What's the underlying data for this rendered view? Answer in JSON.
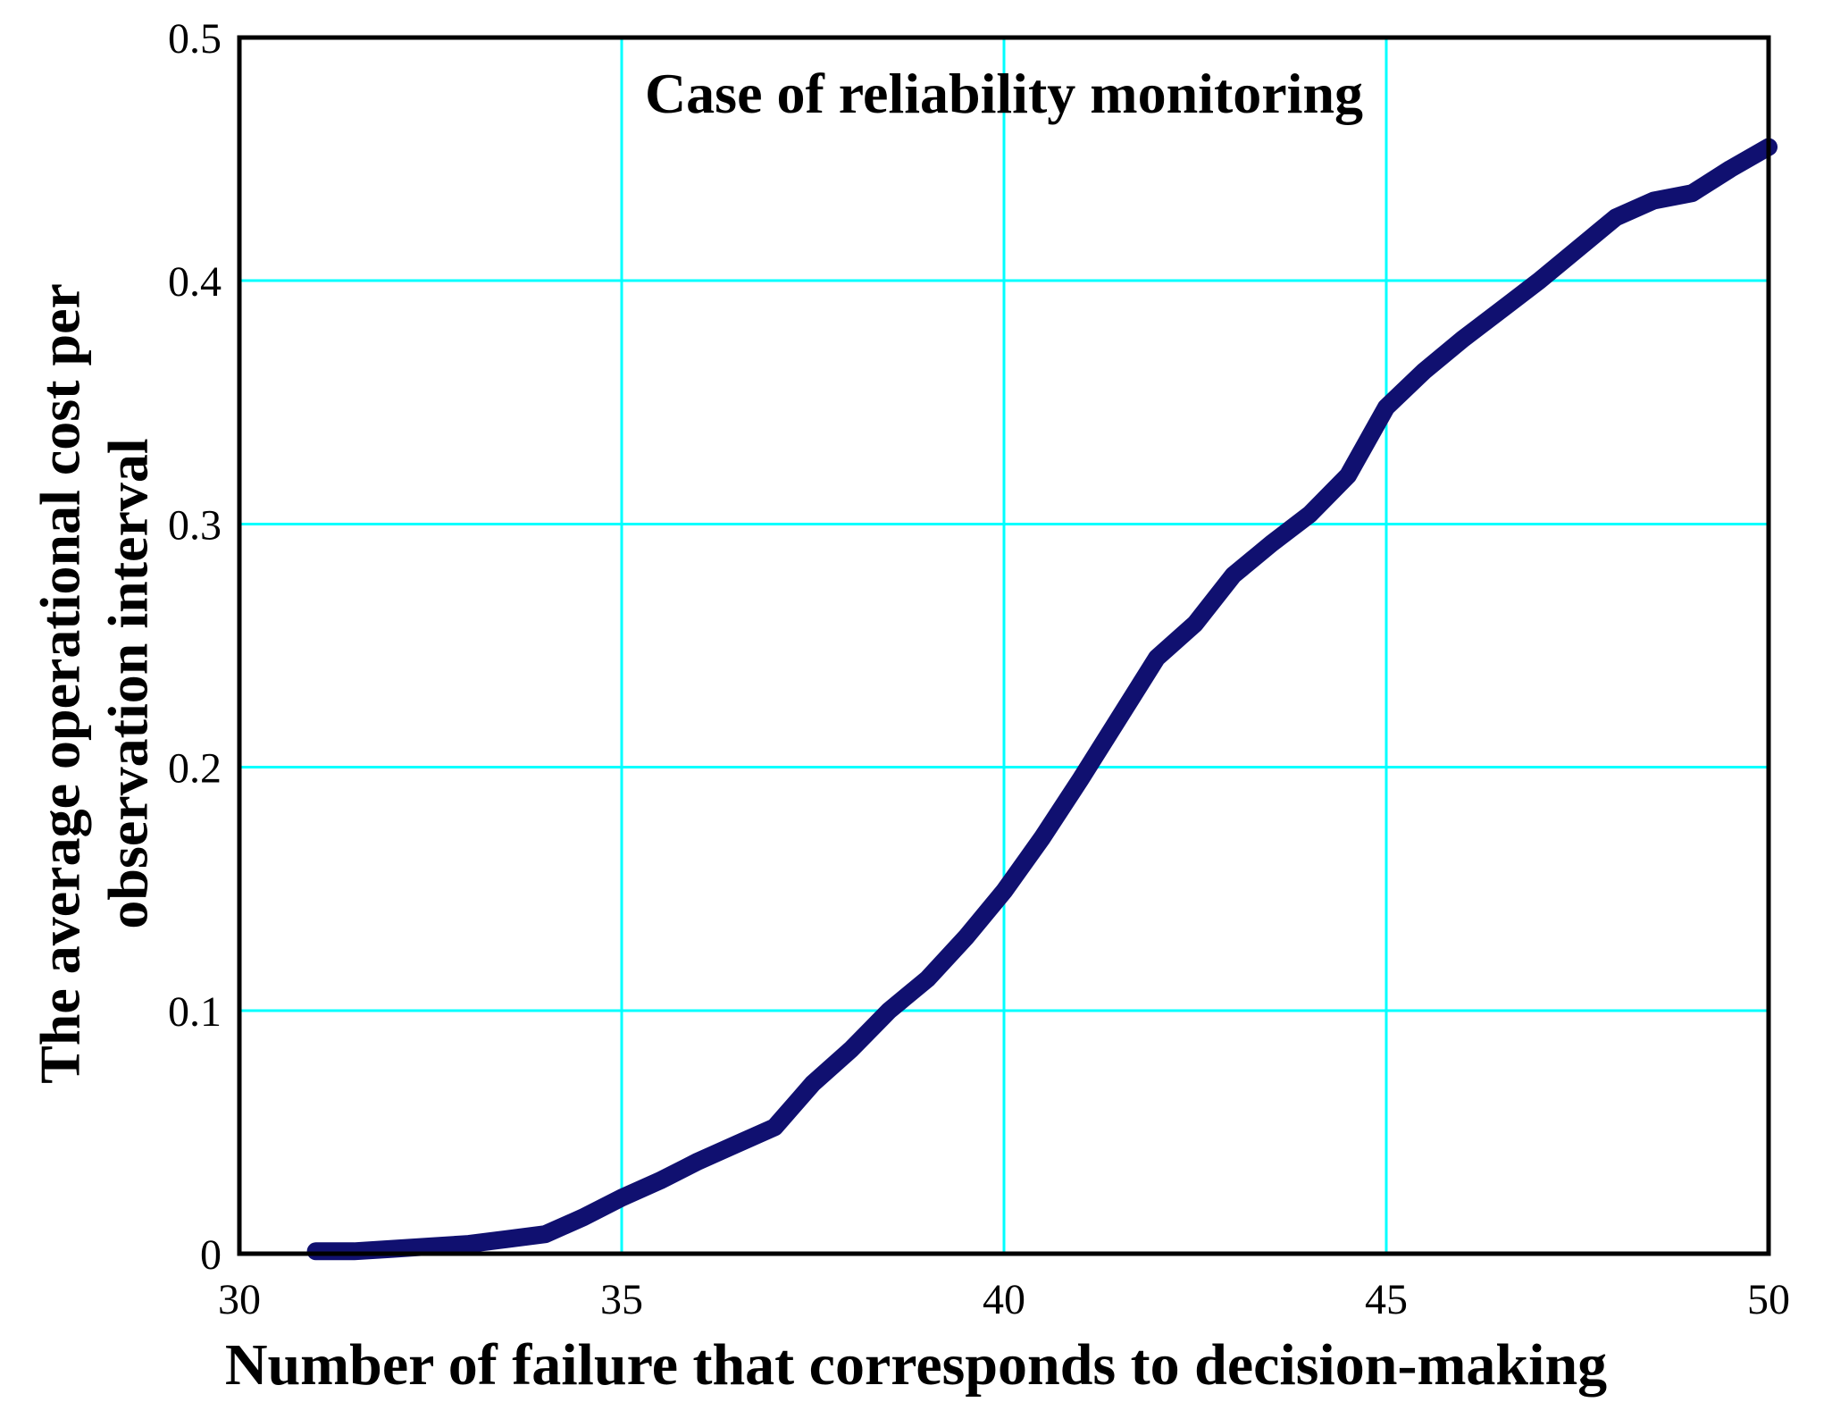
{
  "figure": {
    "background_color": "#ffffff",
    "title": "Case of reliability monitoring",
    "x_label": "Number of failure that corresponds to decision-making",
    "y_label_line1": "The average operational cost per",
    "y_label_line2": "observation interval"
  },
  "colors": {
    "curve": "#101070",
    "grid": "#00ffff",
    "axis_box": "#000000",
    "text": "#000000"
  },
  "chart_data": {
    "type": "line",
    "title": "Case of reliability monitoring",
    "xlabel": "Number of failure that corresponds to decision-making",
    "ylabel": "The average operational cost per observation interval",
    "xlim": [
      30,
      50
    ],
    "ylim": [
      0,
      0.5
    ],
    "x_ticks": [
      30,
      35,
      40,
      45,
      50
    ],
    "x_tick_labels": [
      "30",
      "35",
      "40",
      "45",
      "50"
    ],
    "y_ticks": [
      0,
      0.1,
      0.2,
      0.3,
      0.4,
      0.5
    ],
    "y_tick_labels": [
      "0",
      "0.1",
      "0.2",
      "0.3",
      "0.4",
      "0.5"
    ],
    "grid": true,
    "legend": false,
    "series": [
      {
        "name": "average operational cost",
        "x": [
          31,
          31.5,
          32,
          32.5,
          33,
          33.5,
          34,
          34.5,
          35,
          35.5,
          36,
          36.5,
          37,
          37.5,
          38,
          38.5,
          39,
          39.5,
          40,
          40.5,
          41,
          41.5,
          42,
          42.5,
          43,
          43.5,
          44,
          44.5,
          45,
          45.5,
          46,
          46.5,
          47,
          47.5,
          48,
          48.5,
          49,
          49.5,
          50
        ],
        "y": [
          0.001,
          0.001,
          0.002,
          0.003,
          0.004,
          0.006,
          0.008,
          0.015,
          0.023,
          0.03,
          0.038,
          0.045,
          0.052,
          0.07,
          0.084,
          0.1,
          0.113,
          0.13,
          0.149,
          0.171,
          0.195,
          0.22,
          0.245,
          0.259,
          0.279,
          0.292,
          0.304,
          0.32,
          0.348,
          0.363,
          0.376,
          0.388,
          0.4,
          0.413,
          0.426,
          0.433,
          0.436,
          0.446,
          0.455
        ]
      }
    ]
  }
}
